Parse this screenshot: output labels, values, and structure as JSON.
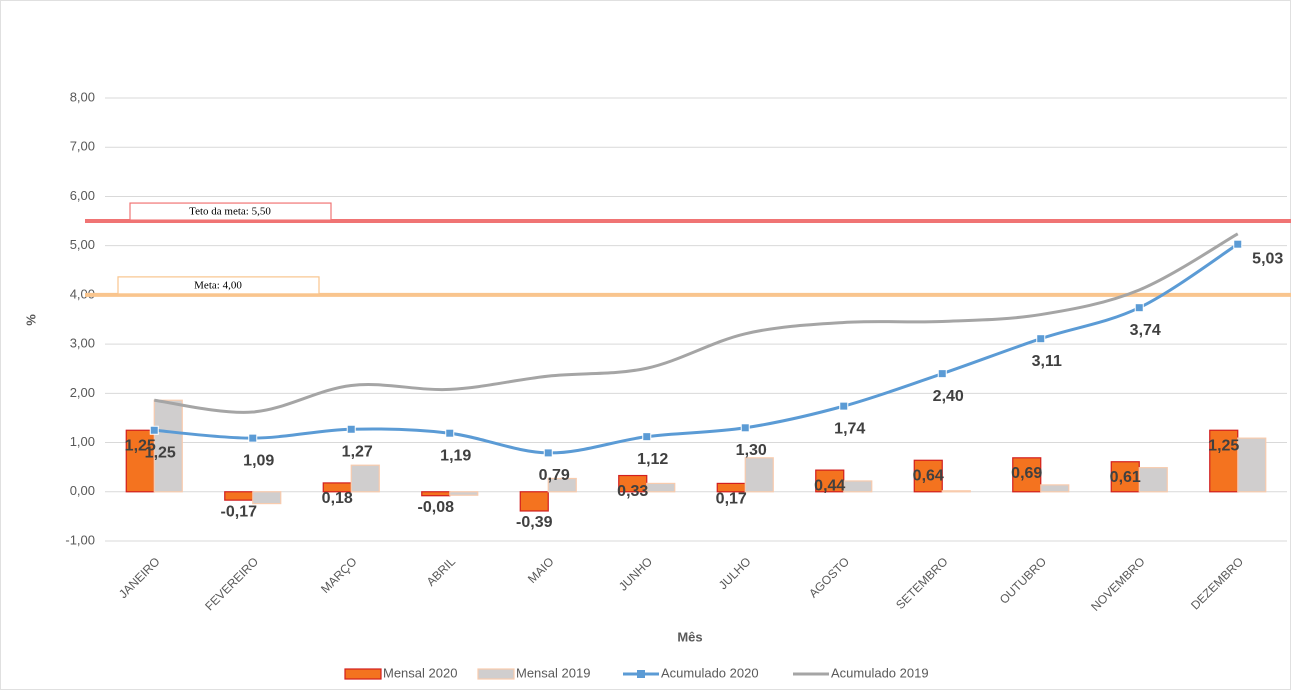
{
  "chart_data": {
    "type": "bar-line",
    "y_axis_label": "%",
    "x_axis_label": "Mês",
    "categories": [
      "JANEIRO",
      "FEVEREIRO",
      "MARÇO",
      "ABRIL",
      "MAIO",
      "JUNHO",
      "JULHO",
      "AGOSTO",
      "SETEMBRO",
      "OUTUBRO",
      "NOVEMBRO",
      "DEZEMBRO"
    ],
    "ylim": [
      -1,
      8
    ],
    "yticks": [
      {
        "value": -1,
        "label": "-1,00"
      },
      {
        "value": 0,
        "label": "0,00"
      },
      {
        "value": 1,
        "label": "1,00"
      },
      {
        "value": 2,
        "label": "2,00"
      },
      {
        "value": 3,
        "label": "3,00"
      },
      {
        "value": 4,
        "label": "4,00"
      },
      {
        "value": 5,
        "label": "5,00"
      },
      {
        "value": 6,
        "label": "6,00"
      },
      {
        "value": 7,
        "label": "7,00"
      },
      {
        "value": 8,
        "label": "8,00"
      }
    ],
    "grid": true,
    "reference_lines": [
      {
        "value": 5.5,
        "label": "Teto da meta: 5,50",
        "color": "#f07474"
      },
      {
        "value": 4,
        "label": "Meta: 4,00",
        "color": "#f9c58e"
      }
    ],
    "series": [
      {
        "name": "Mensal 2020",
        "kind": "bar",
        "color": "#f4731f",
        "border": "#d21f1f",
        "values": [
          1.25,
          -0.17,
          0.18,
          -0.08,
          -0.39,
          0.33,
          0.17,
          0.44,
          0.64,
          0.69,
          0.61,
          1.25
        ],
        "value_labels": [
          "1,25",
          "-0,17",
          "0,18",
          "-0,08",
          "-0,39",
          "0,33",
          "0,17",
          "0,44",
          "0,64",
          "0,69",
          "0,61",
          "1,25"
        ]
      },
      {
        "name": "Mensal 2019",
        "kind": "bar",
        "color": "#d0cece",
        "border": "#f8cbad",
        "values": [
          1.86,
          -0.24,
          0.54,
          -0.07,
          0.27,
          0.17,
          0.69,
          0.22,
          0.02,
          0.14,
          0.49,
          1.09
        ]
      },
      {
        "name": "Acumulado 2020",
        "kind": "line",
        "color": "#5b9bd5",
        "marker": true,
        "values": [
          1.25,
          1.09,
          1.27,
          1.19,
          0.79,
          1.12,
          1.3,
          1.74,
          2.4,
          3.11,
          3.74,
          5.03
        ],
        "value_labels": [
          "1,25",
          "1,09",
          "1,27",
          "1,19",
          "0,79",
          "1,12",
          "1,30",
          "1,74",
          "2,40",
          "3,11",
          "3,74",
          "5,03"
        ]
      },
      {
        "name": "Acumulado 2019",
        "kind": "line",
        "color": "#a5a5a5",
        "marker": false,
        "values": [
          1.86,
          1.62,
          2.16,
          2.08,
          2.35,
          2.51,
          3.21,
          3.44,
          3.46,
          3.6,
          4.1,
          5.24
        ]
      }
    ]
  }
}
